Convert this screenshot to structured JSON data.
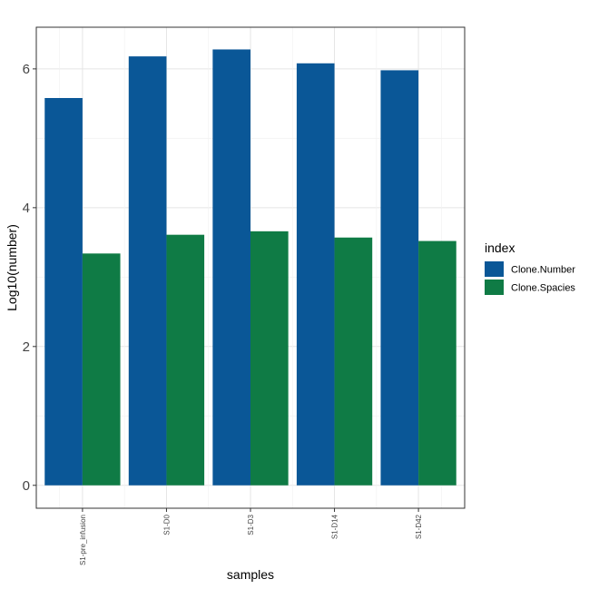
{
  "chart_data": {
    "type": "bar",
    "xlabel": "samples",
    "ylabel": "Log10(number)",
    "categories": [
      "S1-pre_infusion",
      "S1-D0",
      "S1-D3",
      "S1-D14",
      "S1-D42"
    ],
    "series": [
      {
        "name": "Clone.Number",
        "color": "#0a5797",
        "values": [
          5.58,
          6.18,
          6.28,
          6.08,
          5.98
        ]
      },
      {
        "name": "Clone.Spacies",
        "color": "#0f7b45",
        "values": [
          3.34,
          3.61,
          3.66,
          3.57,
          3.52
        ]
      }
    ],
    "ylim": [
      -0.33,
      6.6
    ],
    "yticks": [
      0,
      2,
      4,
      6
    ],
    "grid": true,
    "legend": {
      "title": "index",
      "position": "right"
    }
  }
}
